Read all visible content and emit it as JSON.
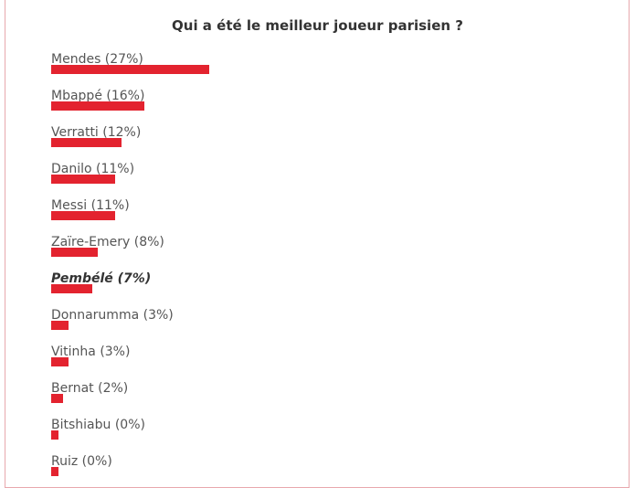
{
  "chart_data": {
    "type": "bar",
    "orientation": "horizontal",
    "title": "Qui a été le meilleur joueur parisien ?",
    "bar_color": "#e3232f",
    "items": [
      {
        "label": "Mendes (27%)",
        "value": 27,
        "highlight": false
      },
      {
        "label": "Mbappé (16%)",
        "value": 16,
        "highlight": false
      },
      {
        "label": "Verratti (12%)",
        "value": 12,
        "highlight": false
      },
      {
        "label": "Danilo (11%)",
        "value": 11,
        "highlight": false
      },
      {
        "label": "Messi (11%)",
        "value": 11,
        "highlight": false
      },
      {
        "label": "Zaïre-Emery (8%)",
        "value": 8,
        "highlight": false
      },
      {
        "label": "Pembélé (7%)",
        "value": 7,
        "highlight": true
      },
      {
        "label": "Donnarumma (3%)",
        "value": 3,
        "highlight": false
      },
      {
        "label": "Vitinha (3%)",
        "value": 3,
        "highlight": false
      },
      {
        "label": "Bernat (2%)",
        "value": 2,
        "highlight": false
      },
      {
        "label": "Bitshiabu (0%)",
        "value": 0,
        "highlight": false
      },
      {
        "label": "Ruiz (0%)",
        "value": 0,
        "highlight": false
      }
    ]
  }
}
